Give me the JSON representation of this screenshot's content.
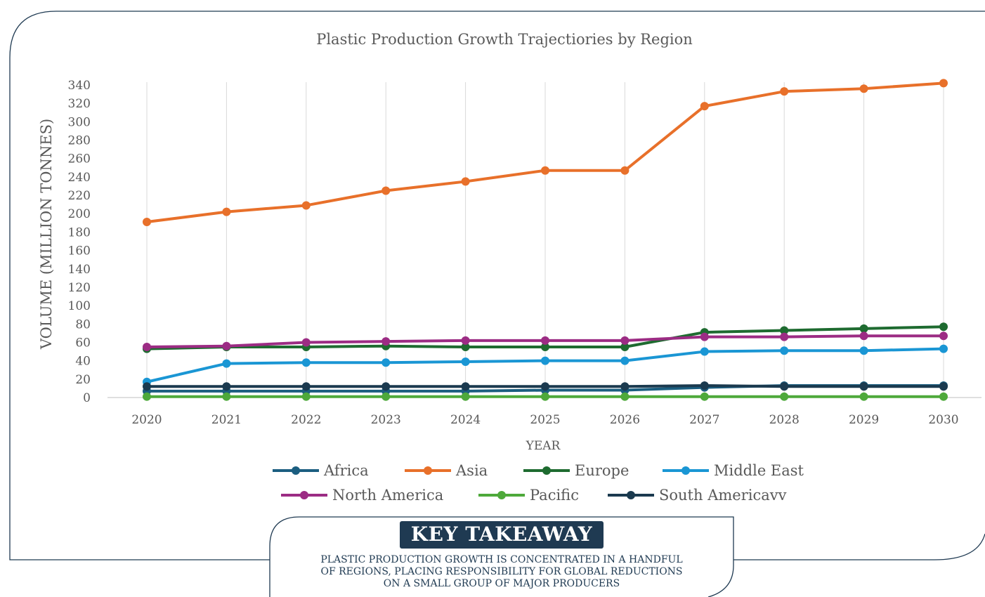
{
  "chart_data": {
    "type": "line",
    "title": "Plastic Production Growth Trajectiories by Region",
    "xlabel": "YEAR",
    "ylabel": "VOLUME (MILLION TONNES)",
    "ylim": [
      0,
      340
    ],
    "yticks": [
      0,
      20,
      40,
      60,
      80,
      100,
      120,
      140,
      160,
      180,
      200,
      220,
      240,
      260,
      280,
      300,
      320,
      340
    ],
    "categories": [
      "2020",
      "2021",
      "2022",
      "2023",
      "2024",
      "2025",
      "2026",
      "2027",
      "2028",
      "2029",
      "2030"
    ],
    "grid": "vertical gridlines",
    "legend_position": "bottom",
    "series": [
      {
        "name": "Africa",
        "color": "#1b5e80",
        "values": [
          7,
          7,
          7,
          7,
          7,
          8,
          8,
          11,
          13,
          13,
          13
        ]
      },
      {
        "name": "Asia",
        "color": "#e8702a",
        "values": [
          191,
          202,
          209,
          225,
          235,
          247,
          247,
          317,
          333,
          336,
          342
        ]
      },
      {
        "name": "Europe",
        "color": "#1e6b30",
        "values": [
          53,
          55,
          55,
          56,
          55,
          55,
          55,
          71,
          73,
          75,
          77
        ]
      },
      {
        "name": "Middle East",
        "color": "#1a96d4",
        "values": [
          17,
          37,
          38,
          38,
          39,
          40,
          40,
          50,
          51,
          51,
          53
        ]
      },
      {
        "name": "North America",
        "color": "#9c2c84",
        "values": [
          55,
          56,
          60,
          61,
          62,
          62,
          62,
          66,
          66,
          67,
          67
        ]
      },
      {
        "name": "Pacific",
        "color": "#4ea93b",
        "values": [
          1,
          1,
          1,
          1,
          1,
          1,
          1,
          1,
          1,
          1,
          1
        ]
      },
      {
        "name": "South Americavv",
        "color": "#1b3a4f",
        "values": [
          12,
          12,
          12,
          12,
          12,
          12,
          12,
          13,
          12,
          12,
          12
        ]
      }
    ]
  },
  "takeaway": {
    "heading": "KEY TAKEAWAY",
    "text": "PLASTIC PRODUCTION GROWTH IS CONCENTRATED IN A HANDFUL\nOF REGIONS, PLACING RESPONSIBILITY FOR GLOBAL REDUCTIONS\nON A SMALL GROUP OF MAJOR PRODUCERS"
  }
}
